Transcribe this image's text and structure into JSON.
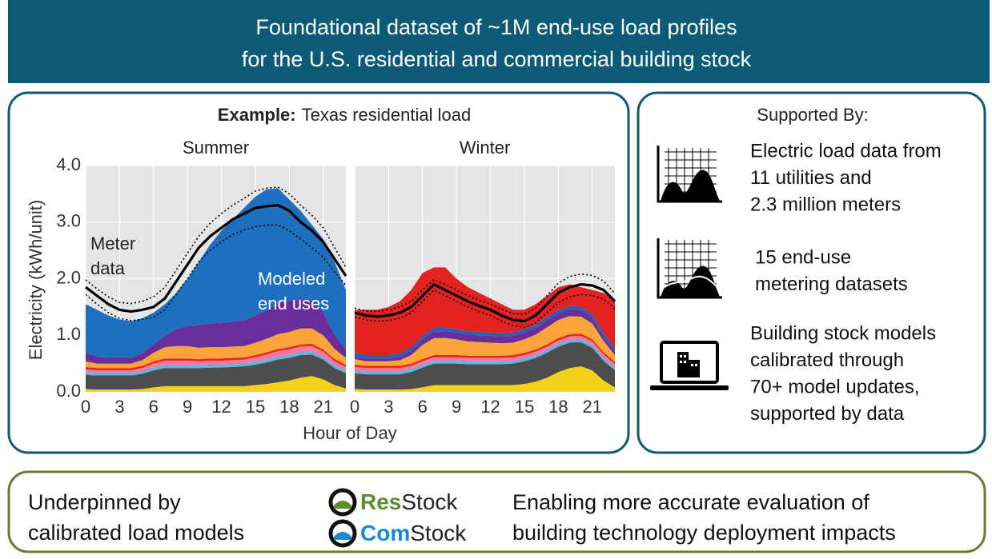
{
  "header": {
    "lines": [
      "Foundational dataset of ~1M end-use load profiles",
      "for the U.S. residential and commercial building stock"
    ]
  },
  "left": {
    "heading_bold": "Example:",
    "heading": "Texas residential load",
    "y_label": "Electricity (kWh/unit)",
    "x_label": "Hour of Day"
  },
  "chart_data": [
    {
      "type": "stacked_area",
      "title": "Summer",
      "x": [
        0,
        1,
        2,
        3,
        4,
        5,
        6,
        7,
        8,
        9,
        10,
        11,
        12,
        13,
        14,
        15,
        16,
        17,
        18,
        19,
        20,
        21,
        22,
        23
      ],
      "xlim": [
        0,
        23
      ],
      "xticks": [
        0,
        3,
        6,
        9,
        12,
        15,
        18,
        21
      ],
      "ylim": [
        0,
        4
      ],
      "yticks": [
        {
          "value": 0,
          "label": "0.0"
        },
        {
          "value": 1,
          "label": "1.0"
        },
        {
          "value": 2,
          "label": "2.0"
        },
        {
          "value": 3,
          "label": "3.0"
        },
        {
          "value": 4,
          "label": "4.0"
        }
      ],
      "grid": true,
      "series": [
        {
          "color": "#f2d31a",
          "values": [
            0.05,
            0.04,
            0.04,
            0.04,
            0.04,
            0.05,
            0.08,
            0.1,
            0.1,
            0.1,
            0.1,
            0.1,
            0.1,
            0.1,
            0.1,
            0.12,
            0.14,
            0.17,
            0.2,
            0.25,
            0.28,
            0.22,
            0.12,
            0.06
          ]
        },
        {
          "color": "#4d4d4d",
          "values": [
            0.25,
            0.25,
            0.25,
            0.25,
            0.25,
            0.27,
            0.3,
            0.32,
            0.32,
            0.32,
            0.32,
            0.33,
            0.33,
            0.34,
            0.35,
            0.36,
            0.38,
            0.4,
            0.4,
            0.4,
            0.38,
            0.35,
            0.3,
            0.27
          ]
        },
        {
          "color": "#5bb5e6",
          "values": [
            0.05,
            0.05,
            0.05,
            0.05,
            0.05,
            0.05,
            0.05,
            0.05,
            0.05,
            0.05,
            0.05,
            0.05,
            0.05,
            0.05,
            0.05,
            0.05,
            0.05,
            0.05,
            0.05,
            0.05,
            0.05,
            0.05,
            0.05,
            0.05
          ]
        },
        {
          "color": "#f07aa0",
          "values": [
            0.05,
            0.04,
            0.04,
            0.04,
            0.04,
            0.05,
            0.07,
            0.08,
            0.08,
            0.08,
            0.07,
            0.07,
            0.07,
            0.07,
            0.07,
            0.08,
            0.09,
            0.1,
            0.1,
            0.1,
            0.1,
            0.09,
            0.07,
            0.06
          ]
        },
        {
          "color": "#e8291c",
          "values": [
            0.04,
            0.04,
            0.04,
            0.04,
            0.04,
            0.04,
            0.04,
            0.04,
            0.04,
            0.04,
            0.04,
            0.04,
            0.04,
            0.04,
            0.04,
            0.04,
            0.04,
            0.04,
            0.04,
            0.04,
            0.04,
            0.04,
            0.04,
            0.04
          ]
        },
        {
          "color": "#f9a53a",
          "values": [
            0.1,
            0.08,
            0.08,
            0.08,
            0.08,
            0.1,
            0.15,
            0.2,
            0.22,
            0.22,
            0.2,
            0.2,
            0.2,
            0.2,
            0.2,
            0.22,
            0.24,
            0.26,
            0.27,
            0.28,
            0.27,
            0.25,
            0.18,
            0.12
          ]
        },
        {
          "color": "#6a2e9a",
          "values": [
            0.15,
            0.12,
            0.1,
            0.1,
            0.1,
            0.12,
            0.15,
            0.2,
            0.3,
            0.35,
            0.4,
            0.42,
            0.43,
            0.44,
            0.45,
            0.48,
            0.5,
            0.55,
            0.55,
            0.52,
            0.5,
            0.4,
            0.25,
            0.15
          ]
        },
        {
          "color": "#1f6fbf",
          "values": [
            0.86,
            0.83,
            0.75,
            0.68,
            0.65,
            0.62,
            0.56,
            0.56,
            0.64,
            0.84,
            1.12,
            1.39,
            1.63,
            1.81,
            1.99,
            2.1,
            2.14,
            2.03,
            1.79,
            1.56,
            1.33,
            1.3,
            1.29,
            1.05
          ]
        }
      ],
      "lines": [
        {
          "color": "#000000",
          "style": "solid",
          "values": [
            1.85,
            1.7,
            1.55,
            1.45,
            1.42,
            1.45,
            1.5,
            1.65,
            1.95,
            2.25,
            2.55,
            2.75,
            2.9,
            3.05,
            3.15,
            3.25,
            3.28,
            3.3,
            3.2,
            3.0,
            2.85,
            2.65,
            2.35,
            2.05
          ]
        },
        {
          "color": "#000000",
          "style": "dotted",
          "values": [
            1.98,
            1.82,
            1.68,
            1.58,
            1.56,
            1.6,
            1.68,
            1.85,
            2.15,
            2.45,
            2.75,
            2.98,
            3.15,
            3.3,
            3.42,
            3.55,
            3.6,
            3.62,
            3.5,
            3.3,
            3.12,
            2.9,
            2.55,
            2.2
          ]
        },
        {
          "color": "#000000",
          "style": "dotted",
          "values": [
            1.72,
            1.55,
            1.4,
            1.3,
            1.26,
            1.28,
            1.32,
            1.45,
            1.72,
            2.0,
            2.3,
            2.5,
            2.65,
            2.78,
            2.86,
            2.92,
            2.95,
            2.95,
            2.85,
            2.7,
            2.55,
            2.38,
            2.12,
            1.88
          ]
        }
      ],
      "labels": [
        {
          "lines": [
            "Meter",
            "data"
          ],
          "color": "#222222"
        },
        {
          "lines": [
            "Modeled",
            "end uses"
          ],
          "color": "#ffffff"
        }
      ]
    },
    {
      "type": "stacked_area",
      "title": "Winter",
      "x": [
        0,
        1,
        2,
        3,
        4,
        5,
        6,
        7,
        8,
        9,
        10,
        11,
        12,
        13,
        14,
        15,
        16,
        17,
        18,
        19,
        20,
        21,
        22,
        23
      ],
      "xlim": [
        0,
        23
      ],
      "xticks": [
        0,
        3,
        6,
        9,
        12,
        15,
        18,
        21
      ],
      "ylim": [
        0,
        4
      ],
      "yticks": [
        0,
        1,
        2,
        3,
        4
      ],
      "grid": true,
      "series": [
        {
          "color": "#f2d31a",
          "values": [
            0.05,
            0.04,
            0.04,
            0.04,
            0.04,
            0.05,
            0.08,
            0.12,
            0.12,
            0.12,
            0.12,
            0.12,
            0.12,
            0.12,
            0.12,
            0.14,
            0.18,
            0.25,
            0.35,
            0.42,
            0.45,
            0.38,
            0.2,
            0.08
          ]
        },
        {
          "color": "#4d4d4d",
          "values": [
            0.28,
            0.27,
            0.27,
            0.27,
            0.27,
            0.3,
            0.35,
            0.38,
            0.38,
            0.38,
            0.37,
            0.37,
            0.37,
            0.37,
            0.38,
            0.4,
            0.42,
            0.44,
            0.45,
            0.45,
            0.43,
            0.4,
            0.35,
            0.3
          ]
        },
        {
          "color": "#5bb5e6",
          "values": [
            0.05,
            0.05,
            0.05,
            0.05,
            0.05,
            0.05,
            0.05,
            0.05,
            0.05,
            0.05,
            0.05,
            0.05,
            0.05,
            0.05,
            0.05,
            0.05,
            0.05,
            0.05,
            0.05,
            0.05,
            0.05,
            0.05,
            0.05,
            0.05
          ]
        },
        {
          "color": "#f07aa0",
          "values": [
            0.06,
            0.06,
            0.06,
            0.06,
            0.06,
            0.06,
            0.06,
            0.06,
            0.06,
            0.06,
            0.06,
            0.06,
            0.06,
            0.06,
            0.06,
            0.06,
            0.06,
            0.06,
            0.06,
            0.06,
            0.06,
            0.06,
            0.06,
            0.06
          ]
        },
        {
          "color": "#e8291c",
          "values": [
            0.04,
            0.04,
            0.04,
            0.04,
            0.04,
            0.04,
            0.04,
            0.04,
            0.04,
            0.04,
            0.04,
            0.04,
            0.04,
            0.04,
            0.04,
            0.04,
            0.04,
            0.04,
            0.04,
            0.04,
            0.04,
            0.04,
            0.04,
            0.04
          ]
        },
        {
          "color": "#f9a53a",
          "values": [
            0.1,
            0.08,
            0.08,
            0.08,
            0.1,
            0.15,
            0.25,
            0.3,
            0.3,
            0.28,
            0.25,
            0.24,
            0.23,
            0.22,
            0.22,
            0.24,
            0.26,
            0.3,
            0.32,
            0.32,
            0.3,
            0.28,
            0.2,
            0.12
          ]
        },
        {
          "color": "#6a2e9a",
          "values": [
            0.05,
            0.05,
            0.05,
            0.05,
            0.06,
            0.08,
            0.1,
            0.12,
            0.12,
            0.12,
            0.12,
            0.12,
            0.12,
            0.12,
            0.12,
            0.12,
            0.12,
            0.12,
            0.12,
            0.12,
            0.12,
            0.1,
            0.08,
            0.06
          ]
        },
        {
          "color": "#2a5fb0",
          "values": [
            0.06,
            0.06,
            0.06,
            0.06,
            0.06,
            0.06,
            0.06,
            0.06,
            0.06,
            0.06,
            0.06,
            0.06,
            0.06,
            0.06,
            0.06,
            0.06,
            0.06,
            0.06,
            0.06,
            0.06,
            0.06,
            0.06,
            0.06,
            0.06
          ]
        },
        {
          "color": "#e32222",
          "values": [
            0.76,
            0.8,
            0.8,
            0.85,
            0.92,
            1.01,
            1.11,
            1.07,
            1.07,
            0.89,
            0.78,
            0.69,
            0.6,
            0.51,
            0.4,
            0.34,
            0.36,
            0.38,
            0.4,
            0.38,
            0.34,
            0.43,
            0.71,
            0.83
          ]
        }
      ],
      "lines": [
        {
          "color": "#000000",
          "style": "solid",
          "values": [
            1.4,
            1.35,
            1.33,
            1.35,
            1.4,
            1.5,
            1.7,
            1.9,
            1.8,
            1.7,
            1.6,
            1.52,
            1.45,
            1.35,
            1.27,
            1.25,
            1.35,
            1.55,
            1.75,
            1.85,
            1.9,
            1.88,
            1.8,
            1.6
          ]
        },
        {
          "color": "#000000",
          "style": "dotted",
          "values": [
            1.48,
            1.43,
            1.42,
            1.45,
            1.5,
            1.6,
            1.8,
            1.98,
            1.9,
            1.8,
            1.7,
            1.62,
            1.55,
            1.46,
            1.38,
            1.37,
            1.48,
            1.7,
            1.92,
            2.04,
            2.08,
            2.06,
            1.96,
            1.74
          ]
        },
        {
          "color": "#000000",
          "style": "dotted",
          "values": [
            1.32,
            1.27,
            1.25,
            1.26,
            1.3,
            1.4,
            1.6,
            1.8,
            1.7,
            1.6,
            1.5,
            1.42,
            1.35,
            1.25,
            1.17,
            1.14,
            1.22,
            1.4,
            1.58,
            1.68,
            1.72,
            1.7,
            1.64,
            1.47
          ]
        }
      ]
    }
  ],
  "right": {
    "title": "Supported By:",
    "items": [
      {
        "lines": [
          "Electric load data from",
          "11 utilities and",
          "2.3 million meters"
        ]
      },
      {
        "lines": [
          "15 end-use",
          "metering datasets"
        ]
      },
      {
        "lines": [
          "Building stock models",
          "calibrated through",
          "70+ model updates,",
          "supported by data"
        ]
      }
    ]
  },
  "bottom": {
    "left": [
      "Underpinned by",
      "calibrated load models"
    ],
    "logos": [
      {
        "bold": "Res",
        "rest": "Stock",
        "color": "#5a8f2e"
      },
      {
        "bold": "Com",
        "rest": "Stock",
        "color": "#1a8ad0"
      }
    ],
    "right": [
      "Enabling more accurate evaluation of",
      "building technology deployment impacts"
    ]
  }
}
